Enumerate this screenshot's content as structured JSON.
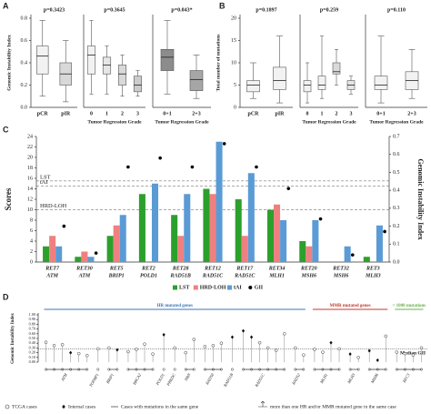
{
  "chart_data": [
    {
      "type": "box",
      "label": "A",
      "ylabel": "Genomic Instability Index",
      "ylim": [
        0,
        0.8
      ],
      "yticks": [
        {
          "value": 0,
          "label": "0.0"
        },
        0.2,
        0.4,
        0.6,
        0.8
      ],
      "groups": [
        {
          "p": "p=0.3423",
          "categories": [
            "pCR",
            "pIR"
          ],
          "colors": [
            "#f2f2f2",
            "#d9d9d9"
          ],
          "boxes": [
            [
              0.1,
              0.3,
              0.46,
              0.55,
              0.78
            ],
            [
              0.05,
              0.2,
              0.3,
              0.4,
              0.6
            ]
          ]
        },
        {
          "p": "p=0.3645",
          "xlabel": "Tumor Regression Grade",
          "categories": [
            "0",
            "1",
            "2",
            "3"
          ],
          "colors": [
            "#f2f2f2",
            "#e6e6e6",
            "#d9d9d9",
            "#cccccc"
          ],
          "boxes": [
            [
              0.12,
              0.3,
              0.47,
              0.55,
              0.78
            ],
            [
              0.12,
              0.3,
              0.38,
              0.45,
              0.55
            ],
            [
              0.1,
              0.2,
              0.3,
              0.38,
              0.47
            ],
            [
              0.1,
              0.14,
              0.2,
              0.28,
              0.33
            ]
          ]
        },
        {
          "p": "p=0.043*",
          "xlabel": "Tumor Regression Grade",
          "categories": [
            "0+1",
            "2+3"
          ],
          "colors": [
            "#8c8c8c",
            "#a6a6a6"
          ],
          "boxes": [
            [
              0.12,
              0.33,
              0.45,
              0.52,
              0.78
            ],
            [
              0.08,
              0.15,
              0.25,
              0.33,
              0.47
            ]
          ]
        }
      ]
    },
    {
      "type": "box",
      "label": "B",
      "ylabel": "Total number of mutations",
      "ylim": [
        0,
        20
      ],
      "yticks": [
        0,
        5,
        10,
        15,
        20
      ],
      "groups": [
        {
          "p": "p=0.1897",
          "categories": [
            "pCR",
            "pIR"
          ],
          "colors": [
            "#f2f2f2",
            "#f2f2f2"
          ],
          "boxes": [
            [
              2,
              3.5,
              5,
              6,
              10
            ],
            [
              1,
              4,
              6,
              9,
              16
            ]
          ]
        },
        {
          "p": "p=0.259",
          "xlabel": "Tumor Regression Grade",
          "categories": [
            "0",
            "1",
            "2",
            "3"
          ],
          "colors": [
            "#f2f2f2",
            "#f2f2f2",
            "#d9d9d9",
            "#e6e6e6"
          ],
          "boxes": [
            [
              1,
              3.5,
              5,
              6,
              10
            ],
            [
              2,
              4,
              5,
              7,
              16
            ],
            [
              5,
              7.5,
              8,
              10,
              13
            ],
            [
              3,
              4,
              5,
              6,
              7
            ]
          ]
        },
        {
          "p": "p=0.110",
          "xlabel": "Tumor Regression Grade",
          "categories": [
            "0+1",
            "2+3"
          ],
          "colors": [
            "#f2f2f2",
            "#f2f2f2"
          ],
          "boxes": [
            [
              1,
              4,
              5,
              7,
              16
            ],
            [
              2,
              4,
              6,
              8,
              13
            ]
          ]
        }
      ]
    },
    {
      "type": "bar",
      "label": "C",
      "ylabel": "Scores",
      "y2label": "Genomic Instability Index",
      "ylim": [
        0,
        24
      ],
      "yticks": [
        0,
        2,
        4,
        6,
        8,
        10,
        12,
        14,
        16,
        18,
        20,
        22,
        24
      ],
      "y2lim": [
        0,
        0.7
      ],
      "y2ticks": [
        {
          "value": 0,
          "label": "0.0"
        },
        0.1,
        0.2,
        0.3,
        0.4,
        0.5,
        0.6,
        0.7
      ],
      "categories": [
        [
          "RET7",
          "ATM"
        ],
        [
          "RET30",
          "ATM"
        ],
        [
          "RET5",
          "BRIP1"
        ],
        [
          "RET2",
          "POLD1"
        ],
        [
          "RET28",
          "RAD51B"
        ],
        [
          "RET12",
          "RAD51C"
        ],
        [
          "RET17",
          "RAD51C"
        ],
        [
          "RET34",
          "MLH1"
        ],
        [
          "RET20",
          "MSH6"
        ],
        [
          "RET32",
          "MSH6"
        ],
        [
          "RET3",
          "MLH3"
        ]
      ],
      "thresholds": [
        {
          "name": "LST",
          "value": 15.5
        },
        {
          "name": "tAI",
          "value": 14.5
        },
        {
          "name": "HRD-LOH",
          "value": 10
        }
      ],
      "series": [
        {
          "name": "LST",
          "color": "#2ca02c",
          "values": [
            3,
            1,
            5,
            13,
            9,
            14,
            12,
            10,
            4,
            0,
            1
          ]
        },
        {
          "name": "HRD-LOH",
          "color": "#f08080",
          "values": [
            5,
            2,
            7,
            0,
            5,
            13,
            5,
            11,
            3,
            0,
            0
          ]
        },
        {
          "name": "tAI",
          "color": "#5b9bd5",
          "values": [
            3,
            1,
            9,
            15,
            13,
            23,
            17,
            8,
            8,
            3,
            7
          ]
        },
        {
          "name": "GII",
          "color": "#000000",
          "axis": "y2",
          "values": [
            0.2,
            0.05,
            0.53,
            0.58,
            0.53,
            0.66,
            0.53,
            0.41,
            0.24,
            0.04,
            0.17
          ]
        }
      ]
    },
    {
      "type": "lollipop",
      "label": "D",
      "ylabel": "Genomic Instability Index",
      "ylim": [
        0,
        1
      ],
      "yticks": [
        {
          "value": 0,
          "label": "0.00"
        },
        {
          "value": 0.1,
          "label": "0.10"
        },
        {
          "value": 0.2,
          "label": "0.20"
        },
        {
          "value": 0.3,
          "label": "0.30"
        },
        {
          "value": 0.4,
          "label": "0.40"
        },
        {
          "value": 0.5,
          "label": "0.50"
        },
        {
          "value": 0.6,
          "label": "0.60"
        },
        {
          "value": 0.7,
          "label": "0.70"
        },
        {
          "value": 0.8,
          "label": "0.80"
        },
        {
          "value": 0.9,
          "label": "0.90"
        },
        {
          "value": 1,
          "label": "1.00"
        }
      ],
      "median": 0.28,
      "median_label": "Median GII",
      "groups": [
        {
          "label": "HR mutated genes",
          "color": "#3a76b8",
          "genes": [
            {
              "name": "ATM",
              "values": [
                0.42,
                0.35,
                0.37,
                0.2,
                0.18,
                0.14
              ],
              "internal": [
                false,
                false,
                false,
                true,
                false,
                false
              ]
            },
            {
              "name": "TOPBP1",
              "values": [
                0.28
              ],
              "internal": [
                false
              ]
            },
            {
              "name": "BRIP1",
              "values": [
                0.3,
                0.26
              ],
              "internal": [
                false,
                true
              ]
            },
            {
              "name": "BRCA2",
              "values": [
                0.22,
                0.27,
                0.38,
                0.17
              ],
              "internal": [
                false,
                false,
                false,
                false
              ]
            },
            {
              "name": "POLD1",
              "values": [
                0.58
              ],
              "internal": [
                true
              ]
            },
            {
              "name": "PRKDC",
              "values": [
                0.3
              ],
              "internal": [
                false
              ]
            },
            {
              "name": "NBN",
              "values": [
                0.2,
                0.48
              ],
              "internal": [
                false,
                false
              ]
            },
            {
              "name": "RAD50",
              "values": [
                0.33,
                0.35,
                0.4
              ],
              "internal": [
                false,
                false,
                false
              ]
            },
            {
              "name": "RAD51B",
              "values": [
                0.53
              ],
              "internal": [
                true
              ]
            },
            {
              "name": "RAD51C",
              "values": [
                0.66,
                0.53,
                0.41,
                0.3,
                0.25,
                0.6
              ],
              "internal": [
                true,
                true,
                false,
                false,
                false,
                false
              ]
            },
            {
              "name": "RAD52",
              "values": [
                0.3,
                0.15
              ],
              "internal": [
                false,
                false
              ]
            }
          ]
        },
        {
          "label": "MMR mutated genes",
          "color": "#c0392b",
          "genes": [
            {
              "name": "MLH1",
              "values": [
                0.27,
                0.21,
                0.41,
                0.28
              ],
              "internal": [
                false,
                false,
                true,
                false
              ]
            },
            {
              "name": "MLH3",
              "values": [
                0.17,
                0.1
              ],
              "internal": [
                true,
                false
              ]
            },
            {
              "name": "MSH6",
              "values": [
                0.24,
                0.04,
                0.55
              ],
              "internal": [
                true,
                true,
                false
              ]
            }
          ]
        },
        {
          "label": "> 1000 mutations",
          "color": "#6ab04c",
          "genes": [
            {
              "name": "RFC3",
              "values": [
                0.21,
                0.18,
                0.15,
                0.3
              ],
              "internal": [
                false,
                false,
                false,
                false
              ]
            }
          ]
        }
      ],
      "legend": [
        "TCGA cases",
        "Internal cases",
        "Cases with mutations in the same gene",
        "more than one HR and/or MMR mutated gene in the same case"
      ]
    }
  ]
}
